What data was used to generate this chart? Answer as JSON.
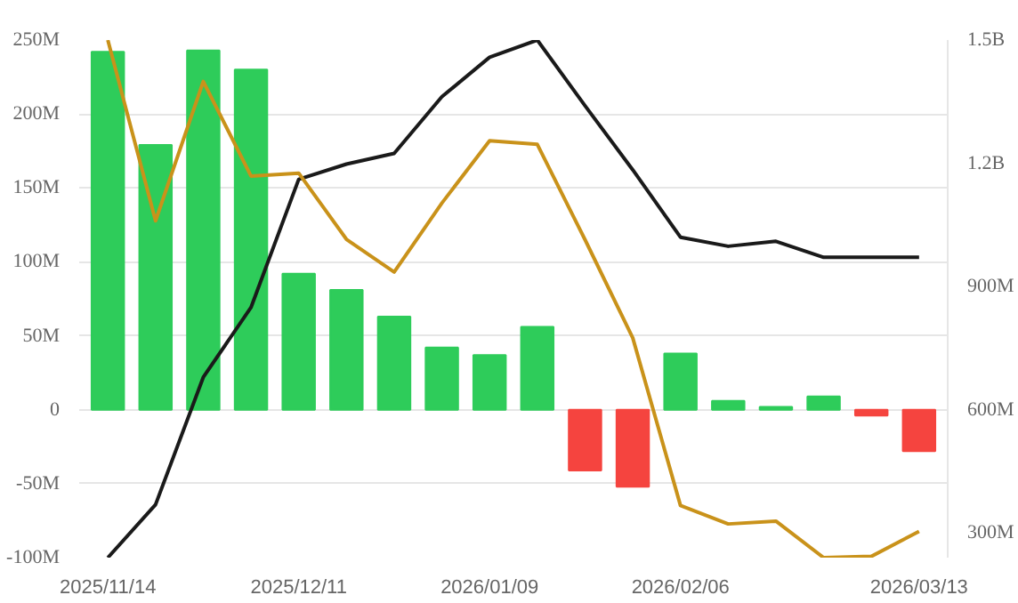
{
  "chart_data": {
    "type": "bar",
    "categories": [
      "2025/11/14",
      null,
      null,
      null,
      "2025/12/11",
      null,
      null,
      null,
      "2026/01/09",
      null,
      null,
      null,
      "2026/02/06",
      null,
      null,
      null,
      null,
      "2026/03/13"
    ],
    "series": [
      {
        "values": [
          242000000,
          179000000,
          243000000,
          230000000,
          92000000,
          81000000,
          63000000,
          42000000,
          37000000,
          56000000,
          -41000000,
          -52000000,
          38000000,
          6000000,
          2000000,
          9000000,
          -4000000,
          -28000000
        ],
        "colors": [
          "#2ecc5a",
          "#2ecc5a",
          "#2ecc5a",
          "#2ecc5a",
          "#2ecc5a",
          "#2ecc5a",
          "#2ecc5a",
          "#2ecc5a",
          "#2ecc5a",
          "#2ecc5a",
          "#f5443f",
          "#f5443f",
          "#2ecc5a",
          "#2ecc5a",
          "#2ecc5a",
          "#2ecc5a",
          "#f5443f",
          "#f5443f"
        ]
      },
      {
        "type": "line",
        "axis": "y2",
        "color": "#1a1a1a",
        "values": [
          240000000,
          369000000,
          679000000,
          849000000,
          1161000000,
          1198000000,
          1224000000,
          1362000000,
          1458000000,
          1500000000,
          1340000000,
          1184000000,
          1020000000,
          998000000,
          1010000000,
          971000000,
          971000000,
          971000000
        ]
      },
      {
        "type": "line",
        "axis": "y2",
        "color": "#c9921a",
        "values": [
          1500000000,
          1060000000,
          1399000000,
          1169000000,
          1176000000,
          1015000000,
          935000000,
          1103000000,
          1255000000,
          1246000000,
          1014000000,
          775000000,
          367000000,
          322000000,
          329000000,
          240000000,
          243000000,
          304000000
        ]
      }
    ],
    "ylim": [
      -100000000,
      250000000
    ],
    "yticks": [
      {
        "value": -100000000,
        "label": "-100M"
      },
      {
        "value": -50000000,
        "label": "-50M"
      },
      0,
      {
        "value": 50000000,
        "label": "50M"
      },
      {
        "value": 100000000,
        "label": "100M"
      },
      {
        "value": 150000000,
        "label": "150M"
      },
      {
        "value": 200000000,
        "label": "200M"
      },
      {
        "value": 250000000,
        "label": "250M"
      }
    ],
    "y2lim": [
      240000000,
      1500000000
    ],
    "y2ticks": [
      {
        "value": 300000000,
        "label": "300M"
      },
      {
        "value": 600000000,
        "label": "600M"
      },
      {
        "value": 900000000,
        "label": "900M"
      },
      {
        "value": 1200000000,
        "label": "1.2B"
      },
      {
        "value": 1500000000,
        "label": "1.5B"
      }
    ],
    "grid": "y"
  }
}
